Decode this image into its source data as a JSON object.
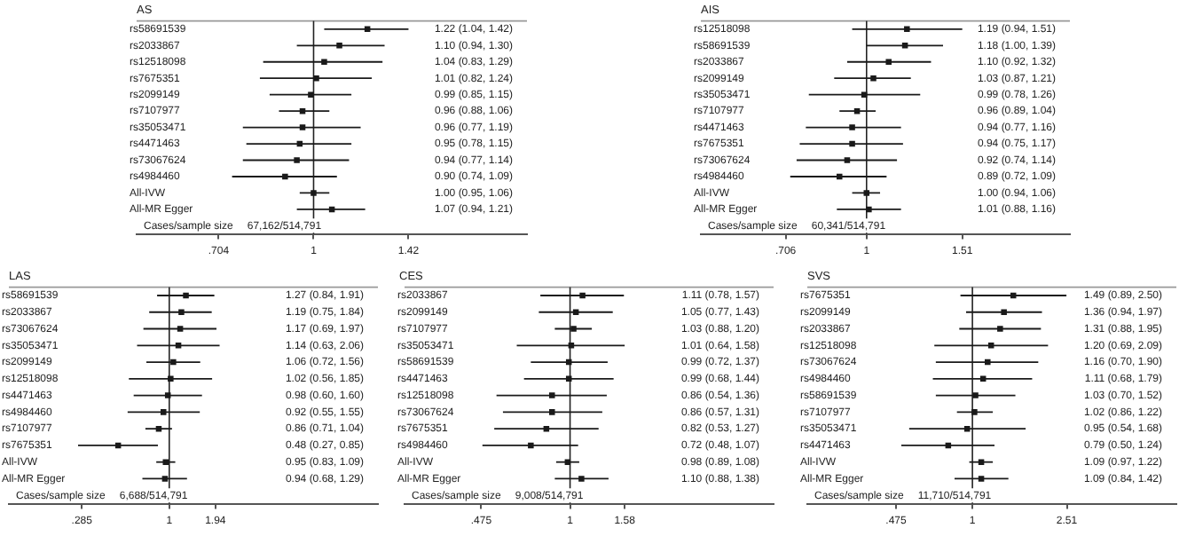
{
  "chart_data": [
    {
      "type": "scatter",
      "orientation": "horizontal",
      "title": "AS",
      "categories": [
        "rs58691539",
        "rs2033867",
        "rs12518098",
        "rs7675351",
        "rs2099149",
        "rs7107977",
        "rs35053471",
        "rs4471463",
        "rs73067624",
        "rs4984460",
        "All-IVW",
        "All-MR Egger"
      ],
      "color": "#1a1a1a",
      "marker": "square",
      "values": [
        1.22,
        1.1,
        1.04,
        1.01,
        0.99,
        0.96,
        0.96,
        0.95,
        0.94,
        0.9,
        1.0,
        1.07
      ],
      "errors": [
        [
          1.04,
          1.42
        ],
        [
          0.94,
          1.3
        ],
        [
          0.83,
          1.29
        ],
        [
          0.82,
          1.24
        ],
        [
          0.85,
          1.15
        ],
        [
          0.88,
          1.06
        ],
        [
          0.77,
          1.19
        ],
        [
          0.78,
          1.15
        ],
        [
          0.77,
          1.14
        ],
        [
          0.74,
          1.09
        ],
        [
          0.95,
          1.06
        ],
        [
          0.94,
          1.21
        ]
      ],
      "annotations": [
        "1.22 (1.04, 1.42)",
        "1.10 (0.94, 1.30)",
        "1.04 (0.83, 1.29)",
        "1.01 (0.82, 1.24)",
        "0.99 (0.85, 1.15)",
        "0.96 (0.88, 1.06)",
        "0.96 (0.77, 1.19)",
        "0.95 (0.78, 1.15)",
        "0.94 (0.77, 1.14)",
        "0.90 (0.74, 1.09)",
        "1.00 (0.95, 1.06)",
        "1.07 (0.94, 1.21)",
        "Cases/sample size",
        "67,162/514,791"
      ],
      "log": "x",
      "xlim": [
        0.52,
        2.2
      ],
      "xticks": [
        {
          "value": 0.704,
          "label": ".704"
        },
        1,
        1.42
      ],
      "ref_lines": [
        {
          "axis": "x",
          "value": 1
        }
      ]
    },
    {
      "type": "scatter",
      "orientation": "horizontal",
      "title": "AIS",
      "categories": [
        "rs12518098",
        "rs58691539",
        "rs2033867",
        "rs2099149",
        "rs35053471",
        "rs7107977",
        "rs4471463",
        "rs7675351",
        "rs73067624",
        "rs4984460",
        "All-IVW",
        "All-MR Egger"
      ],
      "color": "#1a1a1a",
      "marker": "square",
      "values": [
        1.19,
        1.18,
        1.1,
        1.03,
        0.99,
        0.96,
        0.94,
        0.94,
        0.92,
        0.89,
        1.0,
        1.01
      ],
      "errors": [
        [
          0.94,
          1.51
        ],
        [
          1.0,
          1.39
        ],
        [
          0.92,
          1.32
        ],
        [
          0.87,
          1.21
        ],
        [
          0.78,
          1.26
        ],
        [
          0.89,
          1.04
        ],
        [
          0.77,
          1.16
        ],
        [
          0.75,
          1.17
        ],
        [
          0.74,
          1.14
        ],
        [
          0.72,
          1.09
        ],
        [
          0.94,
          1.06
        ],
        [
          0.88,
          1.16
        ]
      ],
      "annotations": [
        "1.19 (0.94, 1.51)",
        "1.18 (1.00, 1.39)",
        "1.10 (0.92, 1.32)",
        "1.03 (0.87, 1.21)",
        "0.99 (0.78, 1.26)",
        "0.96 (0.89, 1.04)",
        "0.94 (0.77, 1.16)",
        "0.94 (0.75, 1.17)",
        "0.92 (0.74, 1.14)",
        "0.89 (0.72, 1.09)",
        "1.00 (0.94, 1.06)",
        "1.01 (0.88, 1.16)",
        "Cases/sample size",
        "60,341/514,791"
      ],
      "log": "x",
      "xlim": [
        0.49,
        2.4
      ],
      "xticks": [
        {
          "value": 0.706,
          "label": ".706"
        },
        1,
        1.51
      ],
      "ref_lines": [
        {
          "axis": "x",
          "value": 1
        }
      ]
    },
    {
      "type": "scatter",
      "orientation": "horizontal",
      "title": "LAS",
      "categories": [
        "rs58691539",
        "rs2033867",
        "rs73067624",
        "rs35053471",
        "rs2099149",
        "rs12518098",
        "rs4471463",
        "rs4984460",
        "rs7107977",
        "rs7675351",
        "All-IVW",
        "All-MR Egger"
      ],
      "color": "#1a1a1a",
      "marker": "square",
      "values": [
        1.27,
        1.19,
        1.17,
        1.14,
        1.06,
        1.02,
        0.98,
        0.92,
        0.86,
        0.48,
        0.95,
        0.94
      ],
      "errors": [
        [
          0.84,
          1.91
        ],
        [
          0.75,
          1.84
        ],
        [
          0.69,
          1.97
        ],
        [
          0.63,
          2.06
        ],
        [
          0.72,
          1.56
        ],
        [
          0.56,
          1.85
        ],
        [
          0.6,
          1.6
        ],
        [
          0.55,
          1.55
        ],
        [
          0.71,
          1.04
        ],
        [
          0.27,
          0.85
        ],
        [
          0.83,
          1.09
        ],
        [
          0.68,
          1.29
        ]
      ],
      "annotations": [
        "1.27 (0.84, 1.91)",
        "1.19 (0.75, 1.84)",
        "1.17 (0.69, 1.97)",
        "1.14 (0.63, 2.06)",
        "1.06 (0.72, 1.56)",
        "1.02 (0.56, 1.85)",
        "0.98 (0.60, 1.60)",
        "0.92 (0.55, 1.55)",
        "0.86 (0.71, 1.04)",
        "0.48 (0.27, 0.85)",
        "0.95 (0.83, 1.09)",
        "0.94 (0.68, 1.29)",
        "Cases/sample size",
        "6,688/514,791"
      ],
      "log": "x",
      "xlim": [
        0.1,
        20
      ],
      "xticks": [
        {
          "value": 0.285,
          "label": ".285"
        },
        1,
        1.94
      ],
      "ref_lines": [
        {
          "axis": "x",
          "value": 1
        }
      ]
    },
    {
      "type": "scatter",
      "orientation": "horizontal",
      "title": "CES",
      "categories": [
        "rs2033867",
        "rs2099149",
        "rs7107977",
        "rs35053471",
        "rs58691539",
        "rs4471463",
        "rs12518098",
        "rs73067624",
        "rs7675351",
        "rs4984460",
        "All-IVW",
        "All-MR Egger"
      ],
      "color": "#1a1a1a",
      "marker": "square",
      "values": [
        1.11,
        1.05,
        1.03,
        1.01,
        0.99,
        0.99,
        0.86,
        0.86,
        0.82,
        0.72,
        0.98,
        1.1
      ],
      "errors": [
        [
          0.78,
          1.57
        ],
        [
          0.77,
          1.43
        ],
        [
          0.88,
          1.2
        ],
        [
          0.64,
          1.58
        ],
        [
          0.72,
          1.37
        ],
        [
          0.68,
          1.44
        ],
        [
          0.54,
          1.36
        ],
        [
          0.57,
          1.31
        ],
        [
          0.53,
          1.27
        ],
        [
          0.48,
          1.07
        ],
        [
          0.89,
          1.08
        ],
        [
          0.88,
          1.38
        ]
      ],
      "annotations": [
        "1.11 (0.78, 1.57)",
        "1.05 (0.77, 1.43)",
        "1.03 (0.88, 1.20)",
        "1.01 (0.64, 1.58)",
        "0.99 (0.72, 1.37)",
        "0.99 (0.68, 1.44)",
        "0.86 (0.54, 1.36)",
        "0.86 (0.57, 1.31)",
        "0.82 (0.53, 1.27)",
        "0.72 (0.48, 1.07)",
        "0.98 (0.89, 1.08)",
        "1.10 (0.88, 1.38)",
        "Cases/sample size",
        "9,008/514,791"
      ],
      "log": "x",
      "xlim": [
        0.25,
        5.5
      ],
      "xticks": [
        {
          "value": 0.475,
          "label": ".475"
        },
        1,
        1.58
      ],
      "ref_lines": [
        {
          "axis": "x",
          "value": 1
        }
      ]
    },
    {
      "type": "scatter",
      "orientation": "horizontal",
      "title": "SVS",
      "categories": [
        "rs7675351",
        "rs2099149",
        "rs2033867",
        "rs12518098",
        "rs73067624",
        "rs4984460",
        "rs58691539",
        "rs7107977",
        "rs35053471",
        "rs4471463",
        "All-IVW",
        "All-MR Egger"
      ],
      "color": "#1a1a1a",
      "marker": "square",
      "values": [
        1.49,
        1.36,
        1.31,
        1.2,
        1.16,
        1.11,
        1.03,
        1.02,
        0.95,
        0.79,
        1.09,
        1.09
      ],
      "errors": [
        [
          0.89,
          2.5
        ],
        [
          0.94,
          1.97
        ],
        [
          0.88,
          1.95
        ],
        [
          0.69,
          2.09
        ],
        [
          0.7,
          1.9
        ],
        [
          0.68,
          1.79
        ],
        [
          0.7,
          1.52
        ],
        [
          0.86,
          1.22
        ],
        [
          0.54,
          1.68
        ],
        [
          0.5,
          1.24
        ],
        [
          0.97,
          1.22
        ],
        [
          0.84,
          1.42
        ]
      ],
      "annotations": [
        "1.49 (0.89, 2.50)",
        "1.36 (0.94, 1.97)",
        "1.31 (0.88, 1.95)",
        "1.20 (0.69, 2.09)",
        "1.16 (0.70, 1.90)",
        "1.11 (0.68, 1.79)",
        "1.03 (0.70, 1.52)",
        "1.02 (0.86, 1.22)",
        "0.95 (0.54, 1.68)",
        "0.79 (0.50, 1.24)",
        "1.09 (0.97, 1.22)",
        "1.09 (0.84, 1.42)",
        "Cases/sample size",
        "11,710/514,791"
      ],
      "log": "x",
      "xlim": [
        0.2,
        7.3
      ],
      "xticks": [
        {
          "value": 0.475,
          "label": ".475"
        },
        1,
        2.51
      ],
      "ref_lines": [
        {
          "axis": "x",
          "value": 1
        }
      ]
    }
  ]
}
